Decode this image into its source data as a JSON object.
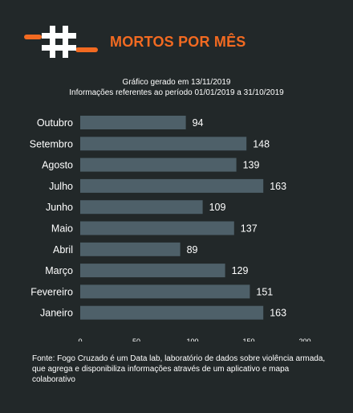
{
  "header": {
    "title": "MORTOS POR MÊS",
    "logo": "fogo-cruzado-hash-bullet-logo",
    "accent_color": "#f26a21"
  },
  "meta": {
    "line1": "Gráfico gerado em 13/11/2019",
    "line2": "Informações referentes ao período 01/01/2019 a 31/10/2019"
  },
  "chart_data": {
    "type": "bar",
    "orientation": "horizontal",
    "categories": [
      "Outubro",
      "Setembro",
      "Agosto",
      "Julho",
      "Junho",
      "Maio",
      "Abril",
      "Março",
      "Fevereiro",
      "Janeiro"
    ],
    "values": [
      94,
      148,
      139,
      163,
      109,
      137,
      89,
      129,
      151,
      163
    ],
    "xlim": [
      0,
      200
    ],
    "xticks": [
      0,
      50,
      100,
      150,
      200
    ],
    "grid": false,
    "bar_color": "#4e6069",
    "title": "",
    "xlabel": "",
    "ylabel": ""
  },
  "footer": {
    "source": "Fonte: Fogo Cruzado é um Data lab, laboratório de dados sobre violência armada, que agrega e disponibiliza informações através de um aplicativo e mapa colaborativo"
  }
}
